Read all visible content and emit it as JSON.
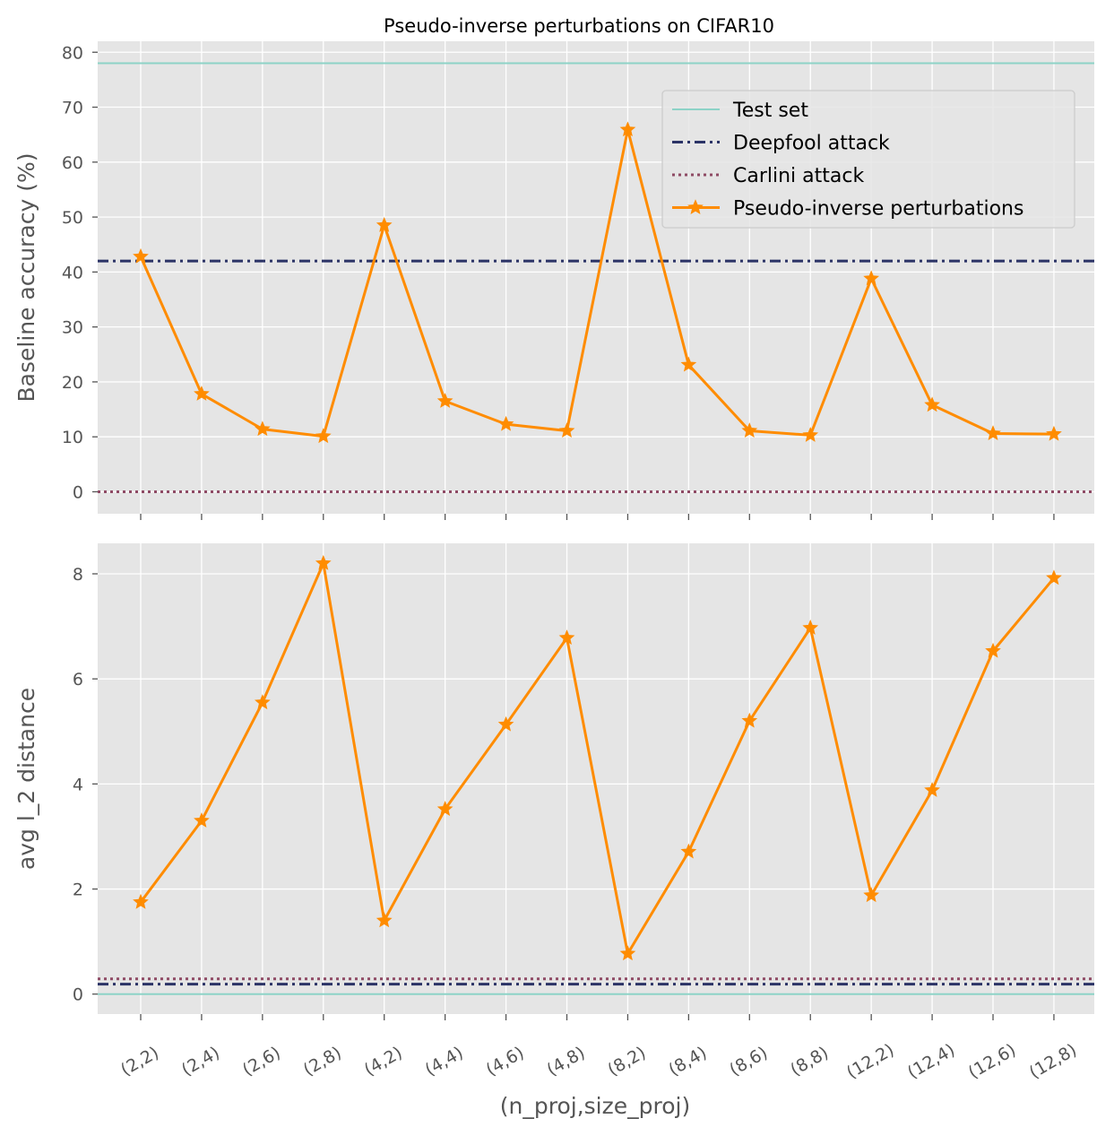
{
  "chart_data": {
    "type": "line",
    "title": "Pseudo-inverse perturbations on CIFAR10",
    "xlabel": "(n_proj,size_proj)",
    "categories": [
      "(2,2)",
      "(2,4)",
      "(2,6)",
      "(2,8)",
      "(4,2)",
      "(4,4)",
      "(4,6)",
      "(4,8)",
      "(8,2)",
      "(8,4)",
      "(8,6)",
      "(8,8)",
      "(12,2)",
      "(12,4)",
      "(12,6)",
      "(12,8)"
    ],
    "colors": {
      "test": "#8dd3c7",
      "deepfool": "#2b3366",
      "carlini": "#8e4a64",
      "pseudo": "#ff8c00",
      "panel_bg": "#e5e5e5",
      "grid": "#ffffff"
    },
    "legend": {
      "placement": "top-right",
      "entries": [
        "Test set",
        "Deepfool attack",
        "Carlini attack",
        "Pseudo-inverse perturbations"
      ]
    },
    "panels": [
      {
        "ylabel": "Baseline accuracy (%)",
        "ylim": [
          -4,
          82
        ],
        "yticks": [
          0,
          10,
          20,
          30,
          40,
          50,
          60,
          70,
          80
        ],
        "grid": true,
        "hlines": [
          {
            "name": "Test set",
            "value": 78,
            "style": "solid"
          },
          {
            "name": "Deepfool attack",
            "value": 42,
            "style": "dashdot"
          },
          {
            "name": "Carlini attack",
            "value": 0,
            "style": "dotted"
          }
        ],
        "series": [
          {
            "name": "Pseudo-inverse perturbations",
            "values": [
              42.8,
              17.8,
              11.4,
              10.1,
              48.5,
              16.5,
              12.3,
              11.1,
              65.9,
              23.1,
              11.1,
              10.3,
              38.8,
              15.8,
              10.6,
              10.5
            ]
          }
        ]
      },
      {
        "ylabel": "avg l_2 distance",
        "ylim": [
          -0.38,
          8.58
        ],
        "yticks": [
          0,
          2,
          4,
          6,
          8
        ],
        "grid": true,
        "hlines": [
          {
            "name": "Test set",
            "value": 0,
            "style": "solid"
          },
          {
            "name": "Deepfool attack",
            "value": 0.19,
            "style": "dashdot"
          },
          {
            "name": "Carlini attack",
            "value": 0.29,
            "style": "dotted"
          }
        ],
        "series": [
          {
            "name": "Pseudo-inverse perturbations",
            "values": [
              1.75,
              3.3,
              5.55,
              8.2,
              1.4,
              3.52,
              5.13,
              6.78,
              0.77,
              2.71,
              5.2,
              6.97,
              1.88,
              3.88,
              6.53,
              7.92
            ]
          }
        ]
      }
    ]
  }
}
